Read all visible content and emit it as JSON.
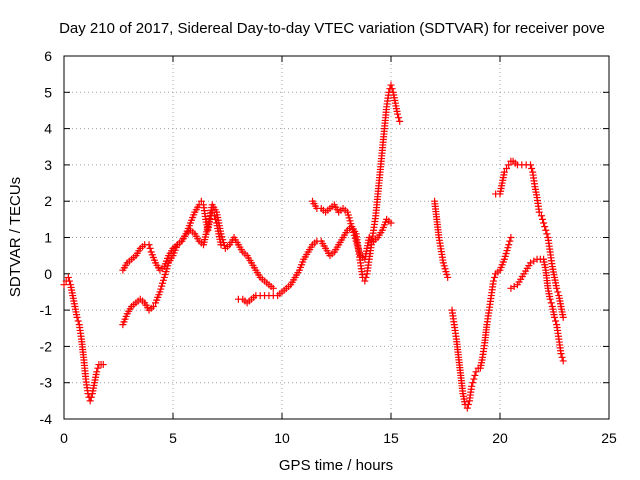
{
  "chart_data": {
    "type": "scatter",
    "title": "Day 210 of 2017, Sidereal Day-to-day VTEC variation (SDTVAR) for receiver pove",
    "xlabel": "GPS time / hours",
    "ylabel": "SDTVAR / TECUs",
    "xlim": [
      0,
      25
    ],
    "ylim": [
      -4,
      6
    ],
    "xticks": [
      "0",
      "5",
      "10",
      "15",
      "20",
      "25"
    ],
    "yticks": [
      "-4",
      "-3",
      "-2",
      "-1",
      "0",
      "1",
      "2",
      "3",
      "4",
      "5",
      "6"
    ],
    "grid": true,
    "marker": "plus",
    "color": "#ff0000",
    "series": [
      {
        "segments": [
          [
            [
              0.0,
              -0.3
            ],
            [
              0.1,
              -0.2
            ],
            [
              0.2,
              -0.1
            ],
            [
              0.3,
              -0.3
            ],
            [
              0.4,
              -0.6
            ],
            [
              0.5,
              -0.9
            ],
            [
              0.6,
              -1.2
            ],
            [
              0.7,
              -1.4
            ],
            [
              0.8,
              -1.8
            ],
            [
              0.9,
              -2.3
            ],
            [
              1.0,
              -2.9
            ],
            [
              1.1,
              -3.3
            ],
            [
              1.2,
              -3.5
            ],
            [
              1.3,
              -3.3
            ],
            [
              1.4,
              -3.0
            ],
            [
              1.5,
              -2.7
            ],
            [
              1.6,
              -2.5
            ],
            [
              1.7,
              -2.5
            ],
            [
              1.8,
              -2.5
            ]
          ],
          [
            [
              2.7,
              -1.4
            ],
            [
              2.9,
              -1.1
            ],
            [
              3.1,
              -0.9
            ],
            [
              3.3,
              -0.8
            ],
            [
              3.5,
              -0.7
            ],
            [
              3.7,
              -0.8
            ],
            [
              3.9,
              -1.0
            ],
            [
              4.1,
              -0.9
            ],
            [
              4.2,
              -0.8
            ],
            [
              4.4,
              -0.5
            ],
            [
              4.6,
              -0.1
            ],
            [
              4.8,
              0.3
            ],
            [
              5.0,
              0.5
            ],
            [
              5.2,
              0.8
            ],
            [
              5.4,
              0.9
            ],
            [
              5.6,
              1.1
            ],
            [
              5.8,
              1.4
            ],
            [
              6.0,
              1.7
            ],
            [
              6.2,
              1.9
            ],
            [
              6.3,
              2.0
            ],
            [
              6.4,
              1.9
            ],
            [
              6.5,
              1.5
            ],
            [
              6.6,
              1.2
            ],
            [
              6.7,
              1.5
            ],
            [
              6.8,
              1.7
            ],
            [
              6.9,
              1.6
            ],
            [
              7.0,
              1.4
            ],
            [
              7.1,
              1.1
            ],
            [
              7.2,
              0.8
            ]
          ],
          [
            [
              8.0,
              -0.7
            ],
            [
              8.2,
              -0.7
            ],
            [
              8.4,
              -0.8
            ],
            [
              8.6,
              -0.7
            ],
            [
              8.8,
              -0.6
            ],
            [
              9.0,
              -0.6
            ],
            [
              9.2,
              -0.6
            ],
            [
              9.4,
              -0.6
            ],
            [
              9.6,
              -0.6
            ],
            [
              9.8,
              -0.6
            ],
            [
              10.0,
              -0.5
            ],
            [
              10.2,
              -0.4
            ],
            [
              10.4,
              -0.3
            ],
            [
              10.6,
              -0.1
            ],
            [
              10.8,
              0.1
            ],
            [
              11.0,
              0.4
            ],
            [
              11.2,
              0.6
            ],
            [
              11.4,
              0.8
            ],
            [
              11.6,
              0.9
            ],
            [
              11.8,
              0.9
            ],
            [
              12.0,
              0.7
            ],
            [
              12.2,
              0.5
            ],
            [
              12.4,
              0.6
            ],
            [
              12.6,
              0.8
            ],
            [
              12.8,
              1.0
            ],
            [
              13.0,
              1.2
            ],
            [
              13.2,
              1.3
            ],
            [
              13.4,
              1.1
            ],
            [
              13.5,
              0.7
            ],
            [
              13.6,
              0.3
            ],
            [
              13.7,
              -0.1
            ],
            [
              13.8,
              -0.2
            ],
            [
              13.9,
              0.0
            ],
            [
              14.0,
              0.4
            ],
            [
              14.1,
              0.8
            ],
            [
              14.2,
              1.2
            ],
            [
              14.3,
              1.6
            ],
            [
              14.4,
              2.2
            ],
            [
              14.5,
              2.8
            ],
            [
              14.6,
              3.4
            ],
            [
              14.7,
              4.0
            ],
            [
              14.8,
              4.6
            ],
            [
              14.9,
              5.0
            ],
            [
              15.0,
              5.2
            ],
            [
              15.1,
              5.0
            ],
            [
              15.2,
              4.7
            ],
            [
              15.3,
              4.4
            ],
            [
              15.4,
              4.2
            ]
          ],
          [
            [
              17.0,
              2.0
            ],
            [
              17.2,
              1.0
            ],
            [
              17.4,
              0.3
            ],
            [
              17.6,
              -0.1
            ]
          ],
          [
            [
              17.8,
              -1.0
            ],
            [
              17.9,
              -1.4
            ],
            [
              18.0,
              -1.8
            ],
            [
              18.1,
              -2.3
            ],
            [
              18.2,
              -2.8
            ],
            [
              18.3,
              -3.3
            ],
            [
              18.4,
              -3.6
            ],
            [
              18.5,
              -3.7
            ],
            [
              18.6,
              -3.5
            ],
            [
              18.7,
              -3.1
            ],
            [
              18.8,
              -2.9
            ],
            [
              18.9,
              -2.7
            ],
            [
              19.0,
              -2.6
            ],
            [
              19.1,
              -2.6
            ],
            [
              19.2,
              -2.3
            ],
            [
              19.3,
              -1.9
            ],
            [
              19.4,
              -1.4
            ],
            [
              19.5,
              -1.0
            ],
            [
              19.6,
              -0.6
            ],
            [
              19.7,
              -0.2
            ],
            [
              19.8,
              0.0
            ],
            [
              20.0,
              0.1
            ],
            [
              20.2,
              0.4
            ],
            [
              20.4,
              0.8
            ],
            [
              20.5,
              1.0
            ]
          ],
          [
            [
              20.5,
              -0.4
            ],
            [
              20.8,
              -0.3
            ],
            [
              21.1,
              0.0
            ],
            [
              21.4,
              0.3
            ],
            [
              21.7,
              0.4
            ],
            [
              22.0,
              0.4
            ],
            [
              22.1,
              0.1
            ],
            [
              22.2,
              -0.4
            ],
            [
              22.3,
              -0.7
            ],
            [
              22.4,
              -0.9
            ],
            [
              22.5,
              -1.2
            ],
            [
              22.6,
              -1.4
            ],
            [
              22.7,
              -1.8
            ],
            [
              22.8,
              -2.2
            ],
            [
              22.9,
              -2.4
            ]
          ]
        ]
      },
      {
        "segments": [
          [
            [
              2.7,
              0.1
            ],
            [
              2.9,
              0.3
            ],
            [
              3.1,
              0.4
            ],
            [
              3.3,
              0.5
            ],
            [
              3.5,
              0.7
            ],
            [
              3.7,
              0.8
            ],
            [
              3.9,
              0.8
            ],
            [
              4.0,
              0.6
            ],
            [
              4.2,
              0.3
            ],
            [
              4.4,
              0.1
            ],
            [
              4.6,
              0.2
            ],
            [
              4.8,
              0.5
            ],
            [
              5.0,
              0.7
            ],
            [
              5.2,
              0.8
            ],
            [
              5.4,
              0.9
            ],
            [
              5.6,
              1.1
            ],
            [
              5.8,
              1.2
            ],
            [
              6.0,
              1.1
            ],
            [
              6.2,
              0.9
            ],
            [
              6.4,
              0.8
            ],
            [
              6.6,
              1.3
            ],
            [
              6.8,
              1.9
            ],
            [
              7.0,
              1.7
            ],
            [
              7.2,
              1.1
            ],
            [
              7.4,
              0.7
            ],
            [
              7.6,
              0.8
            ],
            [
              7.8,
              1.0
            ],
            [
              8.0,
              0.8
            ],
            [
              8.2,
              0.6
            ],
            [
              8.4,
              0.5
            ],
            [
              8.6,
              0.3
            ],
            [
              8.8,
              0.1
            ],
            [
              9.0,
              -0.1
            ],
            [
              9.2,
              -0.2
            ],
            [
              9.4,
              -0.3
            ],
            [
              9.6,
              -0.4
            ]
          ],
          [
            [
              11.4,
              2.0
            ],
            [
              11.6,
              1.8
            ],
            [
              11.8,
              1.8
            ],
            [
              12.0,
              1.7
            ],
            [
              12.2,
              1.8
            ],
            [
              12.4,
              1.9
            ],
            [
              12.6,
              1.7
            ],
            [
              12.8,
              1.8
            ],
            [
              13.0,
              1.7
            ],
            [
              13.2,
              1.3
            ],
            [
              13.4,
              0.9
            ],
            [
              13.6,
              0.5
            ],
            [
              13.8,
              0.4
            ],
            [
              13.9,
              0.7
            ],
            [
              14.0,
              1.0
            ],
            [
              14.2,
              0.9
            ],
            [
              14.4,
              1.0
            ],
            [
              14.6,
              1.2
            ],
            [
              14.8,
              1.5
            ],
            [
              15.0,
              1.4
            ]
          ],
          [
            [
              19.8,
              2.2
            ],
            [
              20.0,
              2.2
            ],
            [
              20.1,
              2.5
            ],
            [
              20.2,
              2.8
            ],
            [
              20.3,
              2.9
            ],
            [
              20.4,
              3.0
            ],
            [
              20.5,
              3.1
            ],
            [
              20.6,
              3.1
            ],
            [
              20.8,
              3.0
            ],
            [
              21.0,
              3.0
            ],
            [
              21.2,
              3.0
            ],
            [
              21.4,
              3.0
            ],
            [
              21.5,
              2.8
            ],
            [
              21.6,
              2.4
            ],
            [
              21.7,
              2.1
            ],
            [
              21.8,
              1.7
            ],
            [
              21.9,
              1.6
            ],
            [
              22.0,
              1.4
            ],
            [
              22.1,
              1.2
            ],
            [
              22.2,
              1.0
            ],
            [
              22.3,
              0.6
            ],
            [
              22.4,
              0.2
            ],
            [
              22.5,
              -0.1
            ],
            [
              22.6,
              -0.4
            ],
            [
              22.7,
              -0.6
            ],
            [
              22.8,
              -0.9
            ],
            [
              22.9,
              -1.2
            ]
          ]
        ]
      }
    ]
  }
}
